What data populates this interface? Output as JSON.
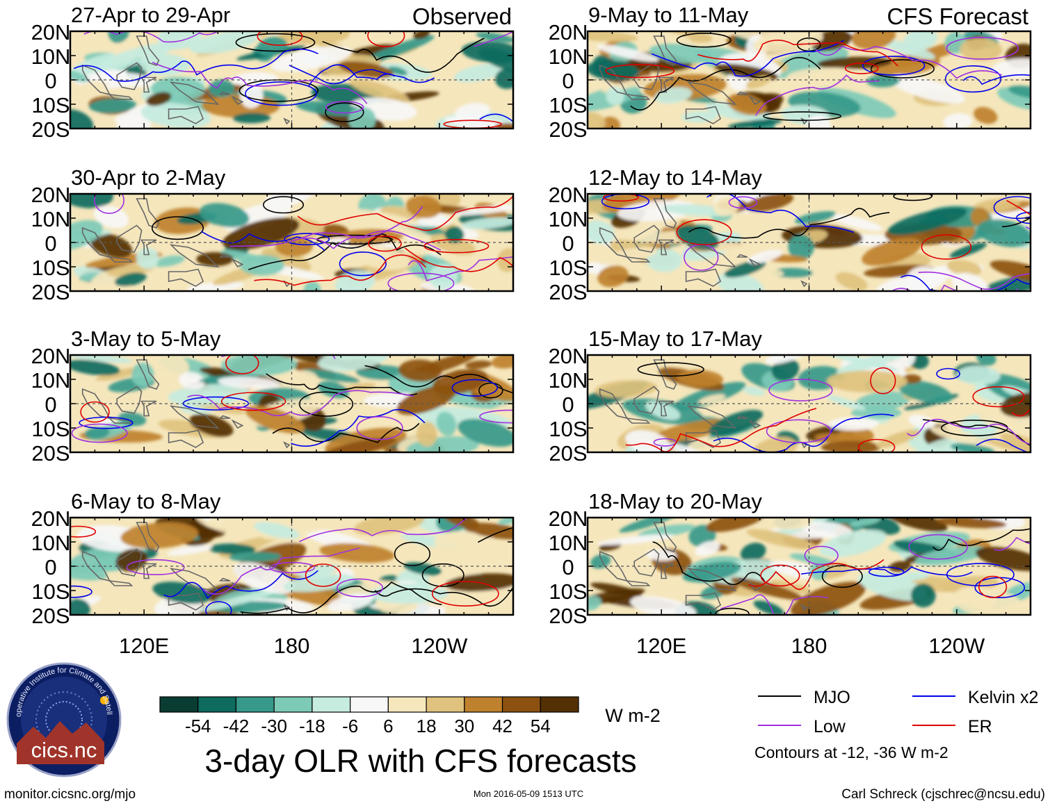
{
  "chart_data": {
    "type": "heatmap",
    "title": "3-day OLR with CFS forecasts",
    "panel_headers": {
      "left": "Observed",
      "right": "CFS Forecast"
    },
    "lat_ticks": [
      "20N",
      "10N",
      "0",
      "10S",
      "20S"
    ],
    "lat_range": [
      -20,
      20
    ],
    "lon_ticks": [
      "120E",
      "180",
      "120W"
    ],
    "lon_range": [
      90,
      270
    ],
    "panels": [
      {
        "period": "27-Apr to 29-Apr",
        "kind": "observed"
      },
      {
        "period": "30-Apr to 2-May",
        "kind": "observed"
      },
      {
        "period": "3-May to 5-May",
        "kind": "observed"
      },
      {
        "period": "6-May to 8-May",
        "kind": "observed"
      },
      {
        "period": "9-May to 11-May",
        "kind": "forecast"
      },
      {
        "period": "12-May to 14-May",
        "kind": "forecast"
      },
      {
        "period": "15-May to 17-May",
        "kind": "forecast"
      },
      {
        "period": "18-May to 20-May",
        "kind": "forecast"
      }
    ],
    "colorbar": {
      "levels": [
        "-54",
        "-42",
        "-30",
        "-18",
        "-6",
        "6",
        "18",
        "30",
        "42",
        "54"
      ],
      "colors": [
        "#093c32",
        "#0e6b5e",
        "#36998a",
        "#7dcab7",
        "#c6ece0",
        "#f7f7f7",
        "#f5e6bc",
        "#dfc27d",
        "#bf812d",
        "#8c5110",
        "#543005"
      ],
      "units": "W m-2"
    },
    "legend": [
      {
        "label": "MJO",
        "color": "#000000"
      },
      {
        "label": "Kelvin x2",
        "color": "#0000ee"
      },
      {
        "label": "Low",
        "color": "#a030e0"
      },
      {
        "label": "ER",
        "color": "#e00000"
      }
    ],
    "contour_note": "Contours at -12, -36 W m-2"
  },
  "logo_text": "cics.nc",
  "logo_ring_text": "Cooperative Institute for Climate and Satellites",
  "footer": {
    "left": "monitor.cicsnc.org/mjo",
    "center": "Mon 2016-05-09 1513 UTC",
    "right": "Carl Schreck (cjschrec@ncsu.edu)"
  }
}
